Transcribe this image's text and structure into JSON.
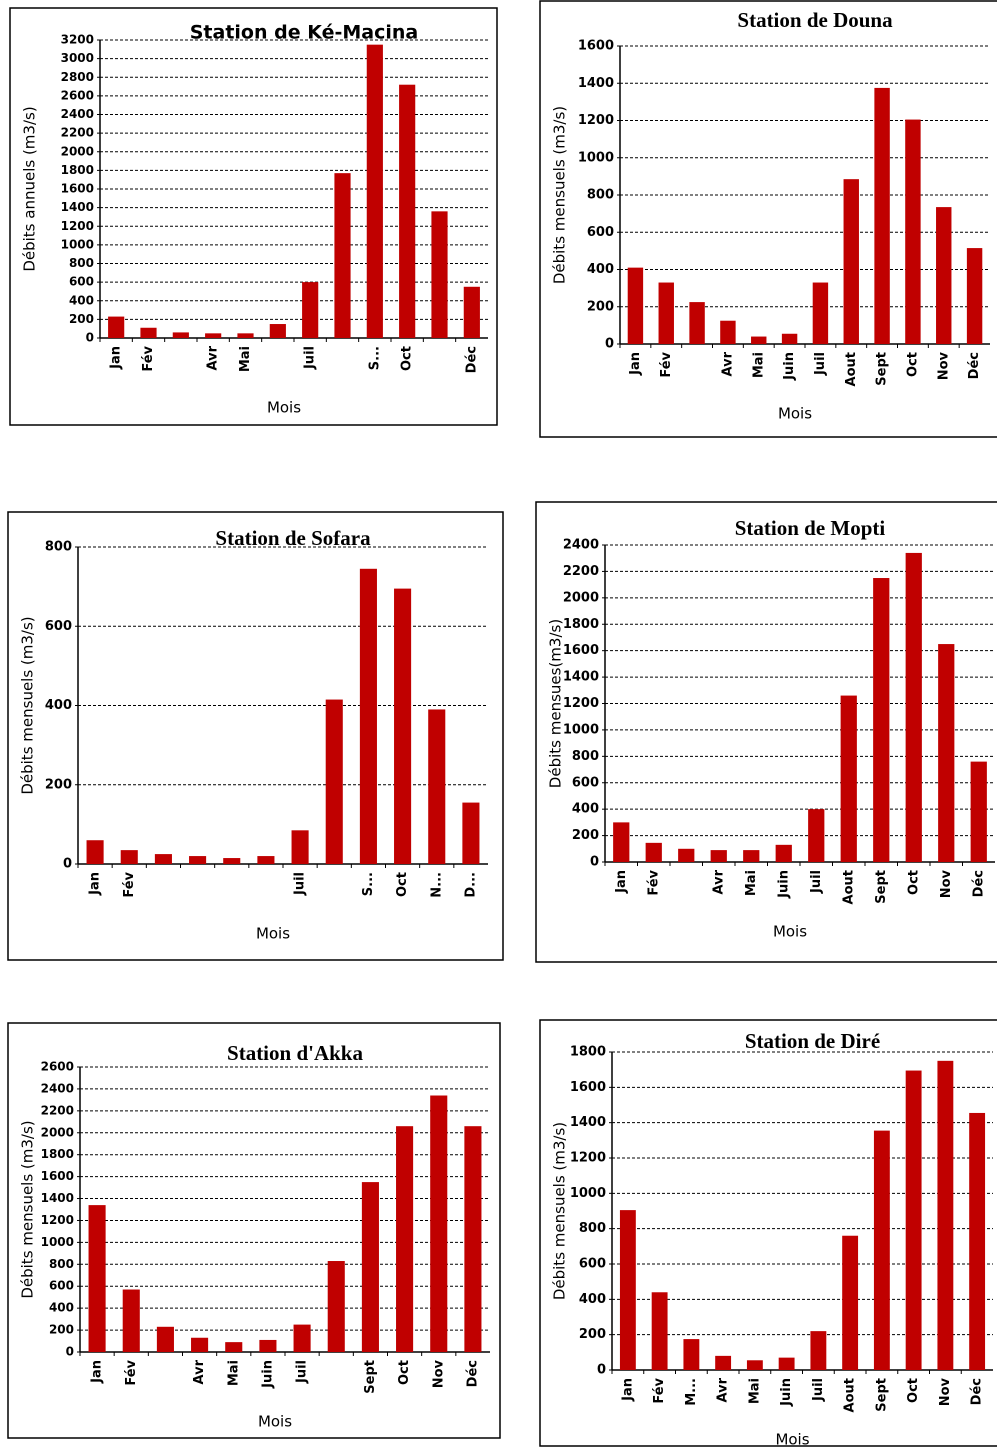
{
  "chart_data": [
    {
      "type": "bar",
      "title": "Station de Ké-Macina",
      "y_label": "Débits annuels (m3/s)",
      "x_label": "Mois",
      "categories": [
        "Jan",
        "Fév",
        null,
        "Avr",
        "Mai",
        null,
        "Juil",
        null,
        "S...",
        "Oct",
        null,
        "Déc"
      ],
      "values": [
        230,
        110,
        60,
        50,
        50,
        150,
        600,
        1770,
        3150,
        2720,
        1360,
        550
      ],
      "color": "#c00000",
      "ylim": [
        0,
        3200
      ],
      "yticks": [
        0,
        200,
        400,
        600,
        800,
        1000,
        1200,
        1400,
        1600,
        1800,
        2000,
        2200,
        2400,
        2600,
        2800,
        3000,
        3200
      ],
      "grid": true
    },
    {
      "type": "bar",
      "title": "Station de Douna",
      "y_label": "Débits mensuels (m3/s)",
      "x_label": "Mois",
      "categories": [
        "Jan",
        "Fév",
        null,
        "Avr",
        "Mai",
        "Juin",
        "Juil",
        "Aout",
        "Sept",
        "Oct",
        "Nov",
        "Déc"
      ],
      "values": [
        410,
        330,
        225,
        125,
        40,
        55,
        330,
        885,
        1375,
        1205,
        735,
        515
      ],
      "color": "#c00000",
      "ylim": [
        0,
        1600
      ],
      "yticks": [
        0,
        200,
        400,
        600,
        800,
        1000,
        1200,
        1400,
        1600
      ],
      "grid": true
    },
    {
      "type": "bar",
      "title": "Station de Sofara",
      "y_label": "Débits mensuels (m3/s)",
      "x_label": "Mois",
      "categories": [
        "Jan",
        "Fév",
        null,
        null,
        null,
        null,
        "Juil",
        null,
        "S...",
        "Oct",
        "N...",
        "D..."
      ],
      "values": [
        60,
        35,
        25,
        20,
        15,
        20,
        85,
        415,
        745,
        695,
        390,
        155
      ],
      "color": "#c00000",
      "ylim": [
        0,
        800
      ],
      "yticks": [
        0,
        200,
        400,
        600,
        800
      ],
      "grid": true
    },
    {
      "type": "bar",
      "title": "Station de Mopti",
      "y_label": "Débits mensues(m3/s)",
      "x_label": "Mois",
      "categories": [
        "Jan",
        "Fév",
        null,
        "Avr",
        "Mai",
        "Juin",
        "Juil",
        "Aout",
        "Sept",
        "Oct",
        "Nov",
        "Déc"
      ],
      "values": [
        300,
        145,
        100,
        90,
        90,
        130,
        400,
        1260,
        2150,
        2340,
        1650,
        760
      ],
      "color": "#c00000",
      "ylim": [
        0,
        2400
      ],
      "yticks": [
        0,
        200,
        400,
        600,
        800,
        1000,
        1200,
        1400,
        1600,
        1800,
        2000,
        2200,
        2400
      ],
      "grid": true
    },
    {
      "type": "bar",
      "title": "Station d'Akka",
      "y_label": "Débits mensuels (m3/s)",
      "x_label": "Mois",
      "categories": [
        "Jan",
        "Fév",
        null,
        "Avr",
        "Mai",
        "Juin",
        "Juil",
        null,
        "Sept",
        "Oct",
        "Nov",
        "Déc"
      ],
      "values": [
        1340,
        570,
        230,
        130,
        90,
        110,
        250,
        830,
        1550,
        2060,
        2340,
        2060
      ],
      "color": "#c00000",
      "ylim": [
        0,
        2600
      ],
      "yticks": [
        0,
        200,
        400,
        600,
        800,
        1000,
        1200,
        1400,
        1600,
        1800,
        2000,
        2200,
        2400,
        2600
      ],
      "grid": true
    },
    {
      "type": "bar",
      "title": "Station de Diré",
      "y_label": "Débits mensuels (m3/s)",
      "x_label": "Mois",
      "categories": [
        "Jan",
        "Fév",
        "M...",
        "Avr",
        "Mai",
        "Juin",
        "Juil",
        "Aout",
        "Sept",
        "Oct",
        "Nov",
        "Déc"
      ],
      "values": [
        905,
        440,
        175,
        80,
        55,
        70,
        220,
        760,
        1355,
        1695,
        1750,
        1455
      ],
      "color": "#c00000",
      "ylim": [
        0,
        1800
      ],
      "yticks": [
        0,
        200,
        400,
        600,
        800,
        1000,
        1200,
        1400,
        1600,
        1800
      ],
      "grid": true
    }
  ]
}
